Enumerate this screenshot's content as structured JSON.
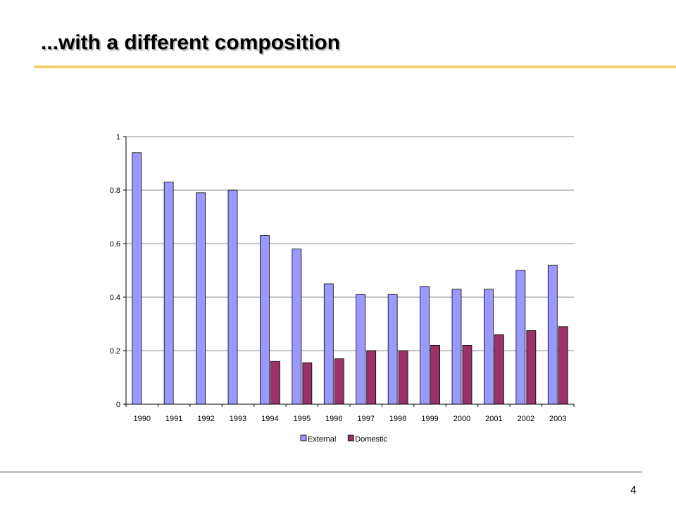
{
  "slide": {
    "title": "...with a different composition",
    "page_number": "4"
  },
  "chart_data": {
    "type": "bar",
    "categories": [
      "1990",
      "1991",
      "1992",
      "1993",
      "1994",
      "1995",
      "1996",
      "1997",
      "1998",
      "1999",
      "2000",
      "2001",
      "2002",
      "2003"
    ],
    "series": [
      {
        "name": "External",
        "color": "#9999ff",
        "values": [
          0.94,
          0.83,
          0.79,
          0.8,
          0.63,
          0.58,
          0.45,
          0.41,
          0.41,
          0.44,
          0.43,
          0.43,
          0.5,
          0.52
        ]
      },
      {
        "name": "Domestic",
        "color": "#993366",
        "values": [
          null,
          null,
          null,
          null,
          0.16,
          0.155,
          0.17,
          0.2,
          0.2,
          0.22,
          0.22,
          0.26,
          0.275,
          0.29
        ]
      }
    ],
    "yticks": [
      "0",
      "0.2",
      "0.4",
      "0.6",
      "0.8",
      "1"
    ],
    "ylim": [
      0,
      1
    ],
    "grid": "horizontal",
    "legend_position": "bottom",
    "title": "",
    "xlabel": "",
    "ylabel": ""
  }
}
